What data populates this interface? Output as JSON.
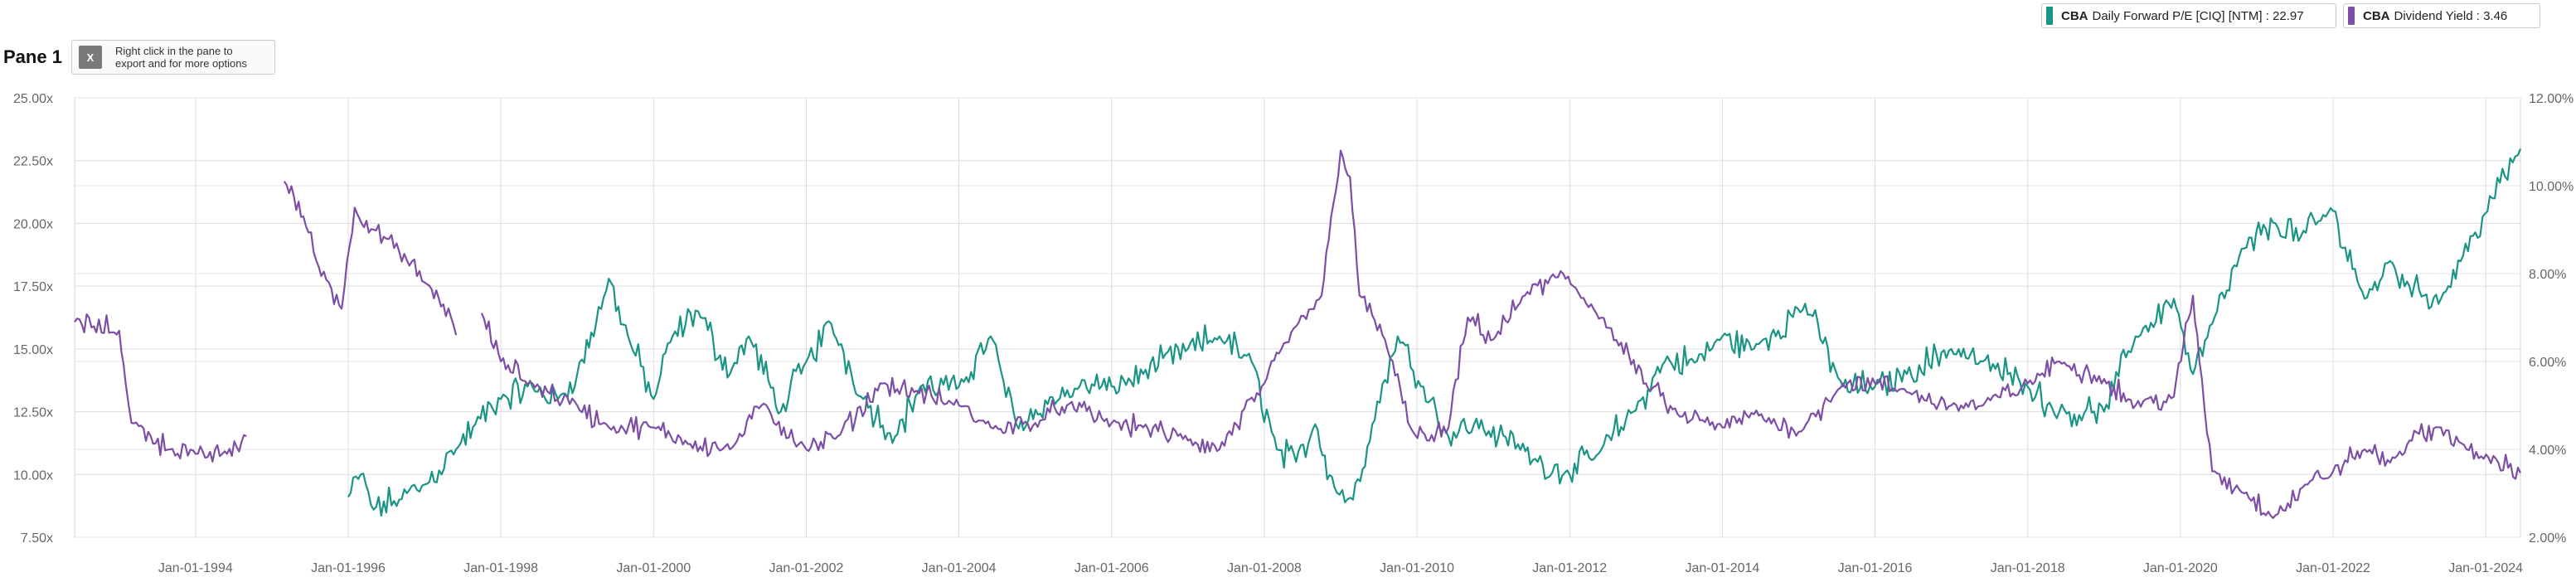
{
  "pane": {
    "title": "Pane 1",
    "export_hint": "Right click in the pane to\nexport and for more options",
    "export_icon": "excel-export-icon"
  },
  "legend": [
    {
      "ticker": "CBA",
      "label": "Daily Forward P/E [CIQ] [NTM] : 22.97",
      "color": "#1a9485"
    },
    {
      "ticker": "CBA",
      "label": "Dividend Yield : 3.46",
      "color": "#7d4ea6"
    }
  ],
  "chart_data": {
    "type": "line",
    "x_unit": "date",
    "xlim": [
      "1992-06-01",
      "2024-06-15"
    ],
    "x_ticks": [
      "Jan-01-1994",
      "Jan-01-1996",
      "Jan-01-1998",
      "Jan-01-2000",
      "Jan-01-2002",
      "Jan-01-2004",
      "Jan-01-2006",
      "Jan-01-2008",
      "Jan-01-2010",
      "Jan-01-2012",
      "Jan-01-2014",
      "Jan-01-2016",
      "Jan-01-2018",
      "Jan-01-2020",
      "Jan-01-2022",
      "Jan-01-2024"
    ],
    "y_left": {
      "ticks": [
        "7.50x",
        "10.00x",
        "12.50x",
        "15.00x",
        "17.50x",
        "20.00x",
        "22.50x",
        "25.00x"
      ],
      "ylim": [
        7.5,
        25.0
      ]
    },
    "y_right": {
      "ticks": [
        "2.00%",
        "4.00%",
        "6.00%",
        "8.00%",
        "10.00%",
        "12.00%"
      ],
      "ylim": [
        2.0,
        12.0
      ]
    },
    "grid": true,
    "legend_position": "top-right",
    "series": [
      {
        "name": "CBA Daily Forward P/E [CIQ] [NTM]",
        "axis": "left",
        "color": "#1a9485",
        "segments": [
          [
            [
              "1996-01-01",
              9.1
            ],
            [
              "1996-03-01",
              10.0
            ],
            [
              "1996-05-01",
              8.6
            ],
            [
              "1996-09-01",
              9.0
            ],
            [
              "1997-01-01",
              9.6
            ],
            [
              "1997-06-01",
              11.0
            ],
            [
              "1997-09-01",
              12.0
            ],
            [
              "1998-01-01",
              13.0
            ],
            [
              "1998-06-01",
              13.5
            ],
            [
              "1998-10-01",
              13.0
            ],
            [
              "1999-01-01",
              14.0
            ],
            [
              "1999-04-01",
              16.0
            ],
            [
              "1999-06-01",
              17.8
            ],
            [
              "1999-09-01",
              15.5
            ],
            [
              "2000-01-01",
              13.0
            ],
            [
              "2000-04-01",
              15.5
            ],
            [
              "2000-08-01",
              16.5
            ],
            [
              "2001-01-01",
              14.0
            ],
            [
              "2001-04-01",
              15.5
            ],
            [
              "2001-09-01",
              12.5
            ],
            [
              "2002-01-01",
              14.5
            ],
            [
              "2002-05-01",
              16.0
            ],
            [
              "2002-10-01",
              13.0
            ],
            [
              "2003-03-01",
              11.5
            ],
            [
              "2003-07-01",
              13.5
            ],
            [
              "2004-01-01",
              13.5
            ],
            [
              "2004-06-01",
              15.5
            ],
            [
              "2004-10-01",
              12.0
            ],
            [
              "2005-03-01",
              12.8
            ],
            [
              "2005-08-01",
              13.5
            ],
            [
              "2006-01-01",
              13.5
            ],
            [
              "2006-06-01",
              14.0
            ],
            [
              "2007-01-01",
              15.0
            ],
            [
              "2007-06-01",
              15.5
            ],
            [
              "2007-11-01",
              14.5
            ],
            [
              "2008-03-01",
              11.0
            ],
            [
              "2008-06-01",
              10.5
            ],
            [
              "2008-09-01",
              12.0
            ],
            [
              "2008-12-01",
              9.5
            ],
            [
              "2009-03-01",
              9.0
            ],
            [
              "2009-06-01",
              12.0
            ],
            [
              "2009-10-01",
              15.5
            ],
            [
              "2010-02-01",
              13.5
            ],
            [
              "2010-06-01",
              11.5
            ],
            [
              "2010-10-01",
              12.0
            ],
            [
              "2011-03-01",
              11.5
            ],
            [
              "2011-08-01",
              10.5
            ],
            [
              "2012-01-01",
              10.0
            ],
            [
              "2012-06-01",
              11.0
            ],
            [
              "2012-11-01",
              12.5
            ],
            [
              "2013-04-01",
              14.5
            ],
            [
              "2013-09-01",
              14.5
            ],
            [
              "2014-01-01",
              15.5
            ],
            [
              "2014-06-01",
              15.0
            ],
            [
              "2015-02-01",
              16.8
            ],
            [
              "2015-08-01",
              13.5
            ],
            [
              "2016-01-01",
              13.5
            ],
            [
              "2016-06-01",
              14.0
            ],
            [
              "2017-01-01",
              15.0
            ],
            [
              "2017-06-01",
              14.5
            ],
            [
              "2018-01-01",
              13.5
            ],
            [
              "2018-06-01",
              12.5
            ],
            [
              "2019-01-01",
              12.5
            ],
            [
              "2019-06-01",
              15.5
            ],
            [
              "2019-12-01",
              17.0
            ],
            [
              "2020-03-01",
              14.0
            ],
            [
              "2020-06-01",
              16.0
            ],
            [
              "2020-11-01",
              19.0
            ],
            [
              "2021-04-01",
              20.0
            ],
            [
              "2021-08-01",
              19.5
            ],
            [
              "2022-01-01",
              20.5
            ],
            [
              "2022-06-01",
              17.0
            ],
            [
              "2022-10-01",
              18.5
            ],
            [
              "2023-01-01",
              17.5
            ],
            [
              "2023-06-01",
              17.0
            ],
            [
              "2023-11-01",
              19.5
            ],
            [
              "2024-02-01",
              21.0
            ],
            [
              "2024-06-15",
              22.97
            ]
          ]
        ]
      },
      {
        "name": "CBA Dividend Yield",
        "axis": "right",
        "color": "#7d4ea6",
        "segments": [
          [
            [
              "1992-06-01",
              6.9
            ],
            [
              "1992-09-01",
              6.8
            ],
            [
              "1993-01-01",
              6.7
            ],
            [
              "1993-02-01",
              5.5
            ],
            [
              "1993-03-01",
              4.6
            ],
            [
              "1993-06-01",
              4.3
            ],
            [
              "1993-09-01",
              4.0
            ],
            [
              "1994-01-01",
              3.9
            ],
            [
              "1994-06-01",
              3.9
            ],
            [
              "1994-09-01",
              4.3
            ]
          ],
          [
            [
              "1995-03-01",
              10.1
            ],
            [
              "1995-06-01",
              9.3
            ],
            [
              "1995-08-01",
              8.3
            ],
            [
              "1995-10-01",
              7.8
            ],
            [
              "1995-12-01",
              7.2
            ],
            [
              "1996-02-01",
              9.5
            ],
            [
              "1996-05-01",
              9.0
            ],
            [
              "1996-09-01",
              8.5
            ],
            [
              "1997-01-01",
              7.8
            ],
            [
              "1997-04-01",
              7.3
            ],
            [
              "1997-06-01",
              6.6
            ]
          ],
          [
            [
              "1997-10-01",
              7.1
            ],
            [
              "1998-01-01",
              6.0
            ],
            [
              "1998-06-01",
              5.5
            ],
            [
              "1999-01-01",
              5.0
            ],
            [
              "1999-06-01",
              4.5
            ],
            [
              "2000-01-01",
              4.5
            ],
            [
              "2000-06-01",
              4.2
            ],
            [
              "2001-01-01",
              4.0
            ],
            [
              "2001-06-01",
              5.0
            ],
            [
              "2002-01-01",
              4.0
            ],
            [
              "2002-06-01",
              4.3
            ],
            [
              "2003-01-01",
              5.5
            ],
            [
              "2003-06-01",
              5.3
            ],
            [
              "2004-01-01",
              5.0
            ],
            [
              "2004-06-01",
              4.5
            ],
            [
              "2005-01-01",
              4.6
            ],
            [
              "2005-06-01",
              5.0
            ],
            [
              "2006-01-01",
              4.6
            ],
            [
              "2006-06-01",
              4.5
            ],
            [
              "2007-01-01",
              4.2
            ],
            [
              "2007-06-01",
              4.0
            ],
            [
              "2008-01-01",
              5.5
            ],
            [
              "2008-06-01",
              6.8
            ],
            [
              "2008-10-01",
              7.5
            ],
            [
              "2009-01-01",
              10.8
            ],
            [
              "2009-02-15",
              10.2
            ],
            [
              "2009-04-01",
              7.5
            ],
            [
              "2009-08-01",
              6.5
            ],
            [
              "2009-12-01",
              4.5
            ],
            [
              "2010-03-01",
              4.2
            ],
            [
              "2010-06-01",
              4.5
            ],
            [
              "2010-09-01",
              7.0
            ],
            [
              "2011-01-01",
              6.5
            ],
            [
              "2011-06-01",
              7.5
            ],
            [
              "2011-12-01",
              8.0
            ],
            [
              "2012-06-01",
              7.0
            ],
            [
              "2013-01-01",
              5.5
            ],
            [
              "2013-06-01",
              4.8
            ],
            [
              "2014-01-01",
              4.5
            ],
            [
              "2014-06-01",
              4.8
            ],
            [
              "2015-01-01",
              4.4
            ],
            [
              "2015-08-01",
              5.5
            ],
            [
              "2016-01-01",
              5.5
            ],
            [
              "2016-06-01",
              5.3
            ],
            [
              "2017-01-01",
              5.0
            ],
            [
              "2017-06-01",
              5.0
            ],
            [
              "2018-01-01",
              5.5
            ],
            [
              "2018-06-01",
              6.0
            ],
            [
              "2019-01-01",
              5.6
            ],
            [
              "2019-06-01",
              5.0
            ],
            [
              "2019-12-01",
              5.2
            ],
            [
              "2020-03-01",
              7.5
            ],
            [
              "2020-04-01",
              6.0
            ],
            [
              "2020-06-01",
              3.5
            ],
            [
              "2020-11-01",
              3.0
            ],
            [
              "2021-04-01",
              2.5
            ],
            [
              "2021-09-01",
              3.2
            ],
            [
              "2022-01-01",
              3.5
            ],
            [
              "2022-06-01",
              4.0
            ],
            [
              "2022-10-01",
              3.7
            ],
            [
              "2023-01-01",
              4.2
            ],
            [
              "2023-06-01",
              4.5
            ],
            [
              "2023-10-01",
              4.0
            ],
            [
              "2024-03-01",
              3.7
            ],
            [
              "2024-06-15",
              3.46
            ]
          ]
        ]
      }
    ]
  }
}
